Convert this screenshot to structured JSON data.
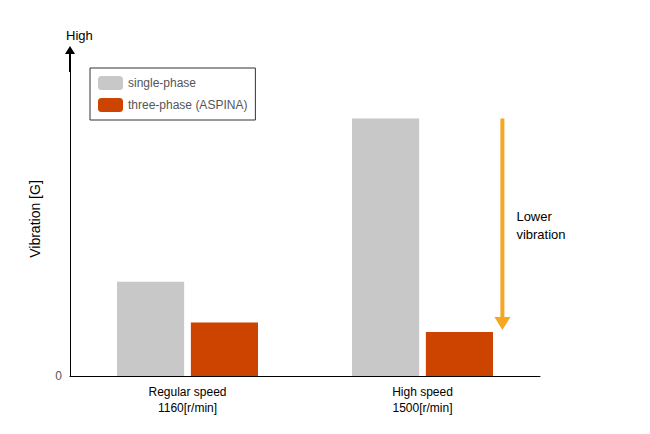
{
  "chart_data": {
    "type": "bar",
    "ylabel": "Vibration [G]",
    "categories": [
      "Regular speed\n1160[r/min]",
      "High speed\n1500[r/min]"
    ],
    "series": [
      {
        "name": "single-phase",
        "color": "#c8c8c8",
        "values": [
          0.3,
          0.82
        ]
      },
      {
        "name": "three-phase (ASPINA)",
        "color": "#cc4400",
        "values": [
          0.17,
          0.14
        ]
      }
    ],
    "ylim": [
      0,
      1.0
    ],
    "yticks": [
      0
    ],
    "grid": true,
    "legend": "upper left",
    "annotations": [
      {
        "text": "High"
      },
      {
        "text": "Lower\nvibration",
        "color": "#f5a623"
      }
    ]
  }
}
